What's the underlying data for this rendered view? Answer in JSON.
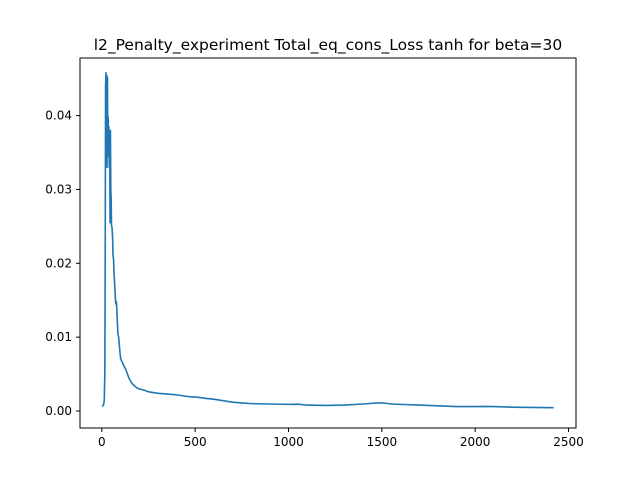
{
  "chart_data": {
    "type": "line",
    "title": "l2_Penalty_experiment Total_eq_cons_Loss tanh for beta=30",
    "xlabel": "",
    "ylabel": "",
    "xlim": [
      -117,
      2540
    ],
    "ylim": [
      -0.0023,
      0.0478
    ],
    "xticks": [
      0,
      500,
      1000,
      1500,
      2000,
      2500
    ],
    "xtick_labels": [
      "0",
      "500",
      "1000",
      "1500",
      "2000",
      "2500"
    ],
    "yticks": [
      0.0,
      0.01,
      0.02,
      0.03,
      0.04
    ],
    "ytick_labels": [
      "0.00",
      "0.01",
      "0.02",
      "0.03",
      "0.04"
    ],
    "grid": false,
    "line_color": "#1f77b4",
    "series": [
      {
        "x": [
          0,
          5,
          10,
          13,
          16,
          18,
          20,
          22,
          24,
          26,
          28,
          30,
          32,
          34,
          36,
          38,
          40,
          42,
          44,
          46,
          48,
          50,
          52,
          55,
          58,
          60,
          63,
          65,
          68,
          70,
          73,
          75,
          78,
          80,
          83,
          86,
          90,
          95,
          100,
          105,
          110,
          115,
          120,
          125,
          130,
          140,
          150,
          160,
          170,
          180,
          190,
          200,
          215,
          230,
          250,
          275,
          300,
          350,
          400,
          450,
          480,
          500,
          530,
          560,
          600,
          650,
          700,
          750,
          800,
          900,
          1000,
          1050,
          1100,
          1200,
          1300,
          1400,
          1450,
          1480,
          1500,
          1520,
          1550,
          1600,
          1700,
          1800,
          1900,
          2000,
          2050,
          2100,
          2200,
          2300,
          2420
        ],
        "y": [
          0.0007,
          0.0007,
          0.0009,
          0.0015,
          0.005,
          0.02,
          0.044,
          0.0458,
          0.042,
          0.0455,
          0.033,
          0.0452,
          0.035,
          0.0398,
          0.0345,
          0.0385,
          0.033,
          0.0375,
          0.0255,
          0.038,
          0.03,
          0.0285,
          0.025,
          0.0248,
          0.0232,
          0.021,
          0.0205,
          0.0188,
          0.0175,
          0.0165,
          0.015,
          0.0145,
          0.0148,
          0.014,
          0.012,
          0.0105,
          0.01,
          0.0085,
          0.0072,
          0.0068,
          0.0066,
          0.0063,
          0.006,
          0.0058,
          0.0055,
          0.0048,
          0.0042,
          0.0038,
          0.0035,
          0.0033,
          0.0031,
          0.003,
          0.0029,
          0.0028,
          0.0026,
          0.0025,
          0.0024,
          0.0023,
          0.0022,
          0.002,
          0.0019,
          0.0019,
          0.0018,
          0.0017,
          0.0016,
          0.0014,
          0.0012,
          0.0011,
          0.001,
          0.00095,
          0.0009,
          0.00092,
          0.0008,
          0.00075,
          0.0008,
          0.00095,
          0.00105,
          0.0011,
          0.0011,
          0.00105,
          0.00095,
          0.0009,
          0.0008,
          0.0007,
          0.0006,
          0.0006,
          0.00062,
          0.0006,
          0.00052,
          0.00048,
          0.00045
        ]
      }
    ]
  }
}
